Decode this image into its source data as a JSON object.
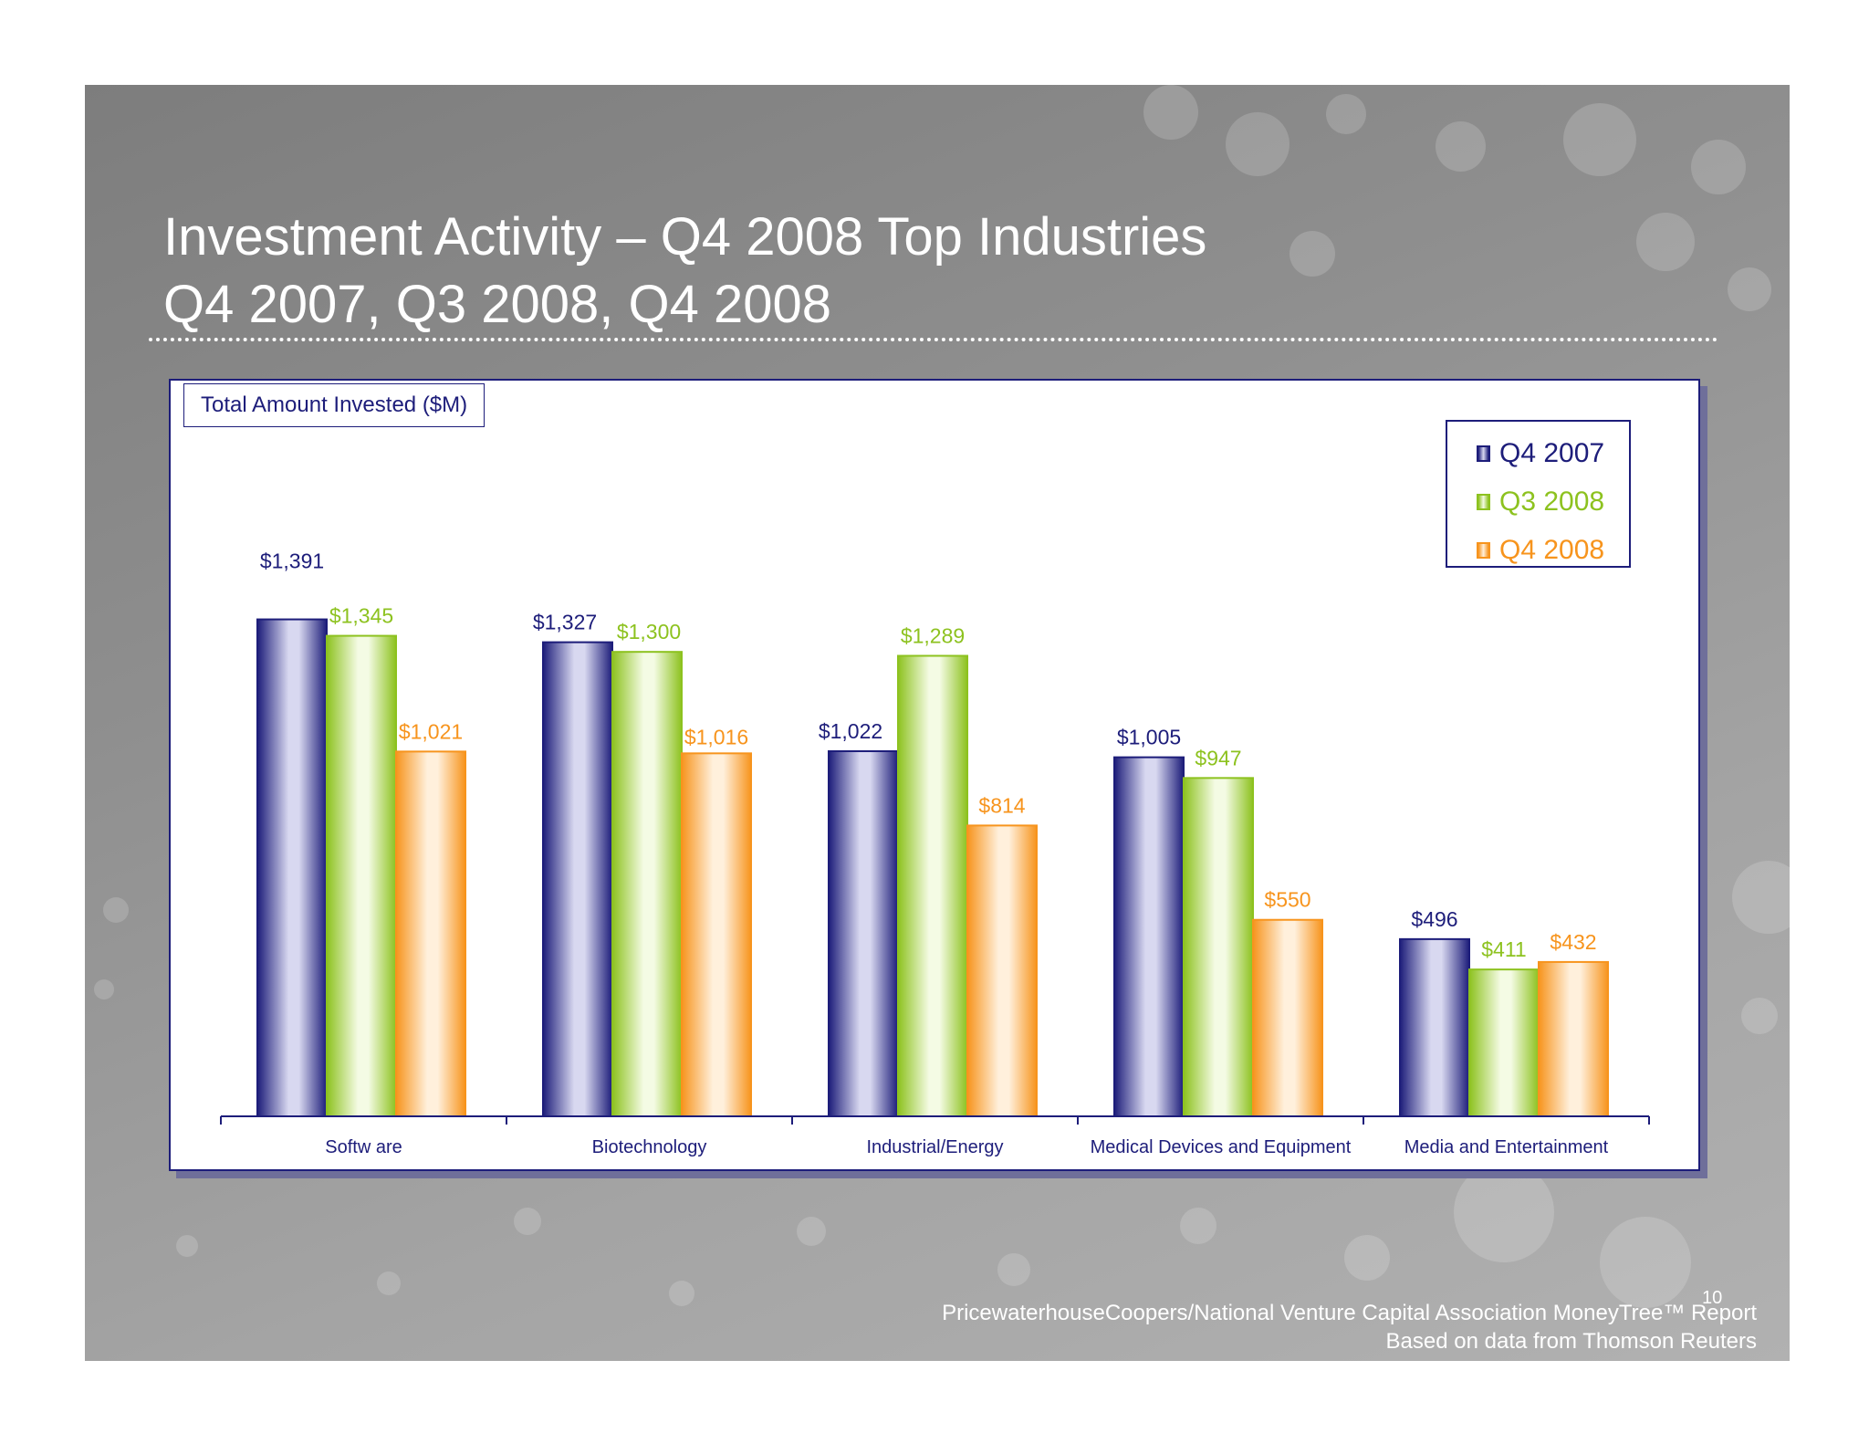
{
  "slide": {
    "title_line1": "Investment Activity – Q4 2008 Top Industries",
    "title_line2": "Q4 2007, Q3 2008, Q4 2008",
    "page_number": "10",
    "footer_line1": "PricewaterhouseCoopers/National Venture Capital Association MoneyTree™ Report",
    "footer_line2": "Based on data from Thomson Reuters"
  },
  "colors": {
    "q4_2007": "#1d1d7a",
    "q3_2008": "#8dc21f",
    "q4_2008": "#f7941d",
    "axis": "#1d1d7a"
  },
  "chart_data": {
    "type": "bar",
    "title": "Total Amount Invested ($M)",
    "categories": [
      "Softw are",
      "Biotechnology",
      "Industrial/Energy",
      "Medical Devices and Equipment",
      "Media and Entertainment"
    ],
    "series": [
      {
        "name": "Q4 2007",
        "values": [
          1391,
          1327,
          1022,
          1005,
          496
        ],
        "labels": [
          "$1,391",
          "$1,327",
          "$1,022",
          "$1,005",
          "$496"
        ]
      },
      {
        "name": "Q3 2008",
        "values": [
          1345,
          1300,
          1289,
          947,
          411
        ],
        "labels": [
          "$1,345",
          "$1,300",
          "$1,289",
          "$947",
          "$411"
        ]
      },
      {
        "name": "Q4 2008",
        "values": [
          1021,
          1016,
          814,
          550,
          432
        ],
        "labels": [
          "$1,021",
          "$1,016",
          "$814",
          "$550",
          "$432"
        ]
      }
    ],
    "ylim": [
      0,
      1400
    ],
    "legend_position": "top-right",
    "grid": false,
    "xlabel": "",
    "ylabel": ""
  }
}
